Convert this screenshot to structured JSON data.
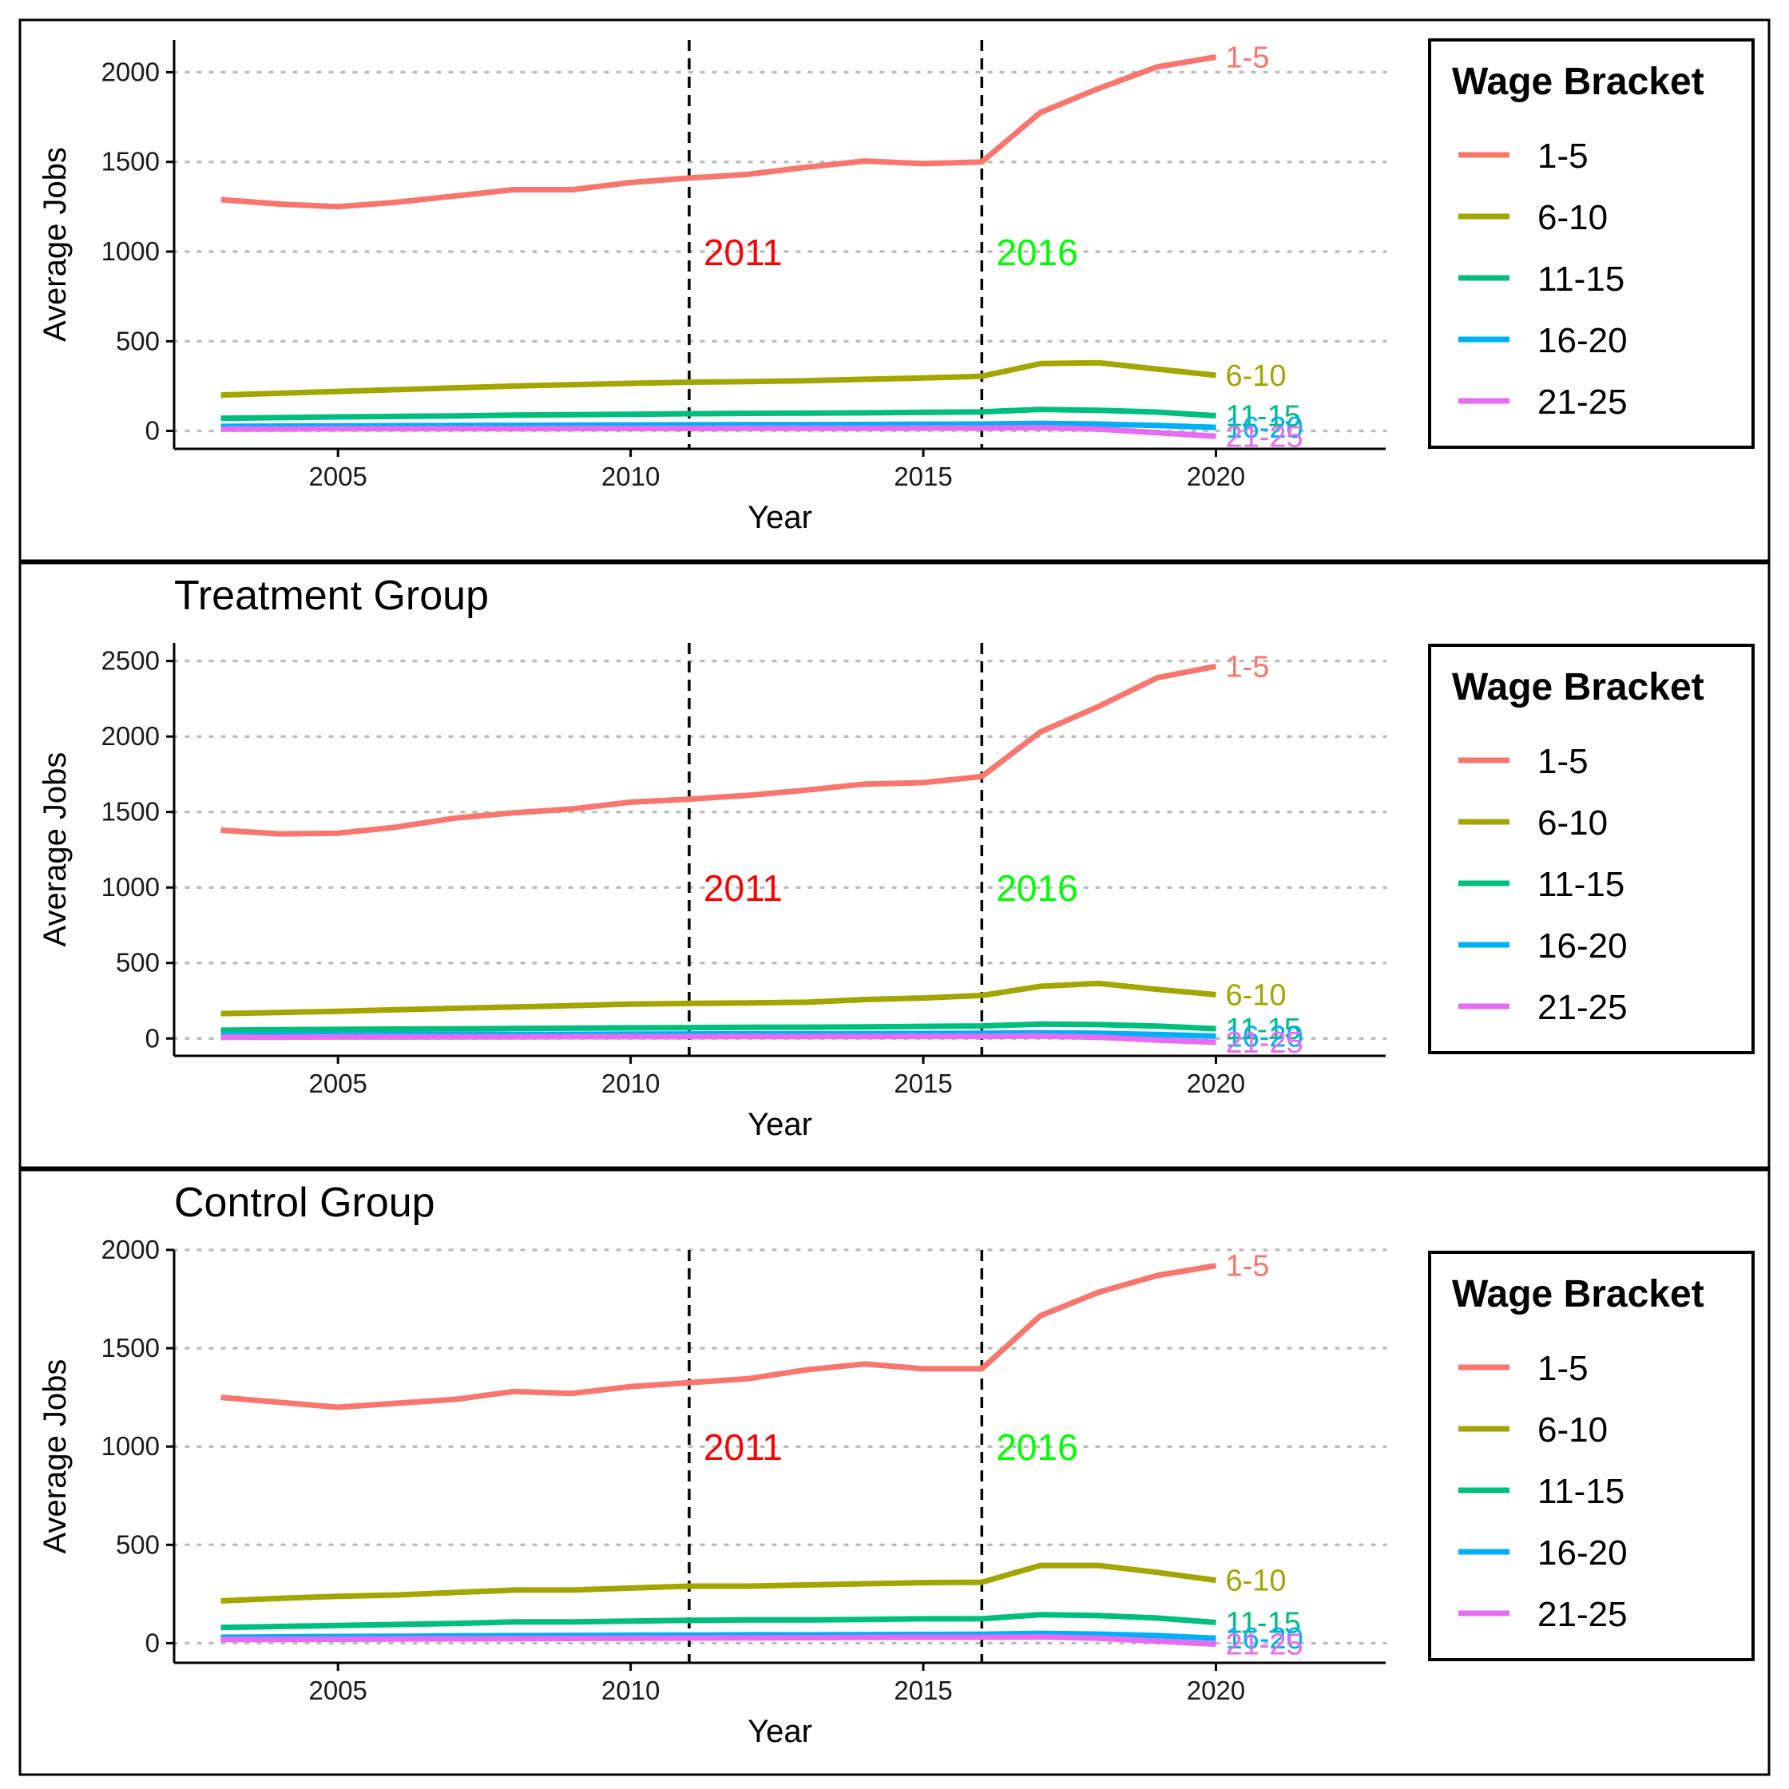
{
  "legend": {
    "title": "Wage Bracket",
    "entries": [
      {
        "label": "1-5",
        "color": "#F8766D"
      },
      {
        "label": "6-10",
        "color": "#A3A500"
      },
      {
        "label": "11-15",
        "color": "#00BF7D"
      },
      {
        "label": "16-20",
        "color": "#00B0F6"
      },
      {
        "label": "21-25",
        "color": "#E76BF3"
      }
    ]
  },
  "chart_data": [
    {
      "type": "line",
      "title": "",
      "xlabel": "Year",
      "ylabel": "Average Jobs",
      "xlim": [
        2002.2,
        2022.9
      ],
      "ylim": [
        -100,
        2180
      ],
      "xticks": [
        2005,
        2010,
        2015,
        2020
      ],
      "yticks": [
        0,
        500,
        1000,
        1500,
        2000
      ],
      "grid": "dotted horizontal",
      "legend_position": "right",
      "vlines": [
        {
          "x": 2011,
          "label": "2011",
          "color": "#FF0000",
          "label_y": 1000
        },
        {
          "x": 2016,
          "label": "2016",
          "color": "#00FF00",
          "label_y": 1000
        }
      ],
      "x": [
        2003,
        2004,
        2005,
        2006,
        2007,
        2008,
        2009,
        2010,
        2011,
        2012,
        2013,
        2014,
        2015,
        2016,
        2017,
        2018,
        2019,
        2020
      ],
      "series": [
        {
          "name": "1-5",
          "color": "#F8766D",
          "values": [
            1290,
            1265,
            1250,
            1275,
            1310,
            1345,
            1345,
            1385,
            1410,
            1430,
            1470,
            1505,
            1490,
            1500,
            1775,
            1910,
            2030,
            2085
          ]
        },
        {
          "name": "6-10",
          "color": "#A3A500",
          "values": [
            200,
            210,
            220,
            230,
            240,
            250,
            258,
            265,
            272,
            275,
            280,
            288,
            295,
            305,
            375,
            380,
            345,
            310
          ]
        },
        {
          "name": "11-15",
          "color": "#00BF7D",
          "values": [
            70,
            74,
            78,
            81,
            84,
            88,
            90,
            93,
            96,
            98,
            99,
            101,
            104,
            106,
            120,
            115,
            105,
            85
          ]
        },
        {
          "name": "16-20",
          "color": "#00B0F6",
          "values": [
            25,
            27,
            28,
            29,
            30,
            31,
            32,
            33,
            34,
            35,
            35,
            36,
            37,
            38,
            42,
            38,
            30,
            20
          ]
        },
        {
          "name": "21-25",
          "color": "#E76BF3",
          "values": [
            10,
            11,
            12,
            12,
            13,
            13,
            14,
            14,
            14,
            15,
            15,
            15,
            16,
            16,
            18,
            10,
            -10,
            -30
          ]
        }
      ]
    },
    {
      "type": "line",
      "title": "Treatment Group",
      "xlabel": "Year",
      "ylabel": "Average Jobs",
      "xlim": [
        2002.2,
        2022.9
      ],
      "ylim": [
        -115,
        2620
      ],
      "xticks": [
        2005,
        2010,
        2015,
        2020
      ],
      "yticks": [
        0,
        500,
        1000,
        1500,
        2000,
        2500
      ],
      "grid": "dotted horizontal",
      "legend_position": "right",
      "vlines": [
        {
          "x": 2011,
          "label": "2011",
          "color": "#FF0000",
          "label_y": 1000
        },
        {
          "x": 2016,
          "label": "2016",
          "color": "#00FF00",
          "label_y": 1000
        }
      ],
      "x": [
        2003,
        2004,
        2005,
        2006,
        2007,
        2008,
        2009,
        2010,
        2011,
        2012,
        2013,
        2014,
        2015,
        2016,
        2017,
        2018,
        2019,
        2020
      ],
      "series": [
        {
          "name": "1-5",
          "color": "#F8766D",
          "values": [
            1380,
            1355,
            1360,
            1400,
            1460,
            1495,
            1520,
            1565,
            1585,
            1610,
            1645,
            1685,
            1695,
            1735,
            2030,
            2200,
            2390,
            2465
          ]
        },
        {
          "name": "6-10",
          "color": "#A3A500",
          "values": [
            165,
            172,
            180,
            190,
            200,
            208,
            218,
            228,
            232,
            235,
            240,
            258,
            268,
            285,
            345,
            365,
            325,
            290
          ]
        },
        {
          "name": "11-15",
          "color": "#00BF7D",
          "values": [
            55,
            58,
            60,
            62,
            64,
            66,
            68,
            70,
            72,
            74,
            75,
            77,
            80,
            83,
            95,
            92,
            82,
            65
          ]
        },
        {
          "name": "16-20",
          "color": "#00B0F6",
          "values": [
            22,
            23,
            24,
            25,
            26,
            27,
            28,
            29,
            30,
            31,
            31,
            32,
            33,
            34,
            38,
            34,
            27,
            15
          ]
        },
        {
          "name": "21-25",
          "color": "#E76BF3",
          "values": [
            8,
            9,
            10,
            10,
            11,
            11,
            12,
            12,
            12,
            13,
            13,
            13,
            14,
            14,
            16,
            8,
            -10,
            -25
          ]
        }
      ]
    },
    {
      "type": "line",
      "title": "Control Group",
      "xlabel": "Year",
      "ylabel": "Average Jobs",
      "xlim": [
        2002.2,
        2022.9
      ],
      "ylim": [
        -100,
        2000
      ],
      "xticks": [
        2005,
        2010,
        2015,
        2020
      ],
      "yticks": [
        0,
        500,
        1000,
        1500,
        2000
      ],
      "grid": "dotted horizontal",
      "legend_position": "right",
      "vlines": [
        {
          "x": 2011,
          "label": "2011",
          "color": "#FF0000",
          "label_y": 1000
        },
        {
          "x": 2016,
          "label": "2016",
          "color": "#00FF00",
          "label_y": 1000
        }
      ],
      "x": [
        2003,
        2004,
        2005,
        2006,
        2007,
        2008,
        2009,
        2010,
        2011,
        2012,
        2013,
        2014,
        2015,
        2016,
        2017,
        2018,
        2019,
        2020
      ],
      "series": [
        {
          "name": "1-5",
          "color": "#F8766D",
          "values": [
            1250,
            1225,
            1200,
            1220,
            1240,
            1280,
            1270,
            1305,
            1325,
            1345,
            1390,
            1420,
            1395,
            1395,
            1665,
            1785,
            1870,
            1920
          ]
        },
        {
          "name": "6-10",
          "color": "#A3A500",
          "values": [
            215,
            228,
            238,
            245,
            258,
            270,
            270,
            280,
            290,
            290,
            296,
            302,
            308,
            310,
            395,
            395,
            360,
            320
          ]
        },
        {
          "name": "11-15",
          "color": "#00BF7D",
          "values": [
            80,
            85,
            90,
            95,
            100,
            108,
            108,
            112,
            116,
            118,
            118,
            120,
            124,
            124,
            145,
            140,
            128,
            105
          ]
        },
        {
          "name": "16-20",
          "color": "#00B0F6",
          "values": [
            30,
            32,
            34,
            35,
            37,
            38,
            39,
            40,
            41,
            42,
            42,
            43,
            44,
            45,
            50,
            46,
            38,
            25
          ]
        },
        {
          "name": "21-25",
          "color": "#E76BF3",
          "values": [
            18,
            19,
            20,
            21,
            22,
            23,
            24,
            25,
            26,
            27,
            28,
            29,
            30,
            30,
            32,
            25,
            10,
            -5
          ]
        }
      ]
    }
  ]
}
